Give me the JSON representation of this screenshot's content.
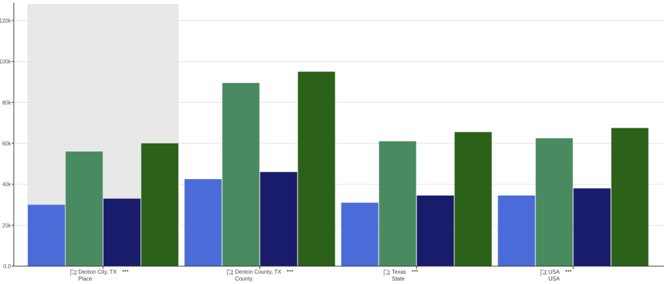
{
  "chart_data": {
    "type": "bar",
    "categories": [
      {
        "name": "Denton City, TX",
        "level": "Place",
        "icon": "map-flag-icon",
        "more": "•••"
      },
      {
        "name": "Denton County, TX",
        "level": "County",
        "icon": "map-flag-icon",
        "more": "•••"
      },
      {
        "name": "Texas",
        "level": "State",
        "icon": "map-flag-icon",
        "more": "•••"
      },
      {
        "name": "USA",
        "level": "USA",
        "icon": "map-flag-icon",
        "more": "•••"
      }
    ],
    "series": [
      {
        "color": "#4a6bd8",
        "values": [
          30000,
          42500,
          31000,
          34500
        ]
      },
      {
        "color": "#4a8a60",
        "values": [
          56000,
          89500,
          61000,
          62500
        ]
      },
      {
        "color": "#181c6a",
        "values": [
          33000,
          46000,
          34500,
          38000
        ]
      },
      {
        "color": "#2b6118",
        "values": [
          60000,
          95000,
          65500,
          67500
        ]
      }
    ],
    "ylim": [
      0,
      128000
    ],
    "yticks": [
      {
        "value": 0,
        "label": "0.0"
      },
      {
        "value": 20000,
        "label": "20k"
      },
      {
        "value": 40000,
        "label": "40k"
      },
      {
        "value": 60000,
        "label": "60k"
      },
      {
        "value": 80000,
        "label": "80k"
      },
      {
        "value": 100000,
        "label": "100k"
      },
      {
        "value": 120000,
        "label": "120k"
      }
    ],
    "grid": true,
    "highlighted_category": 0,
    "highlight_color": "#e8e8e8",
    "axis_color": "#333333",
    "grid_color": "#e2e2e2"
  }
}
